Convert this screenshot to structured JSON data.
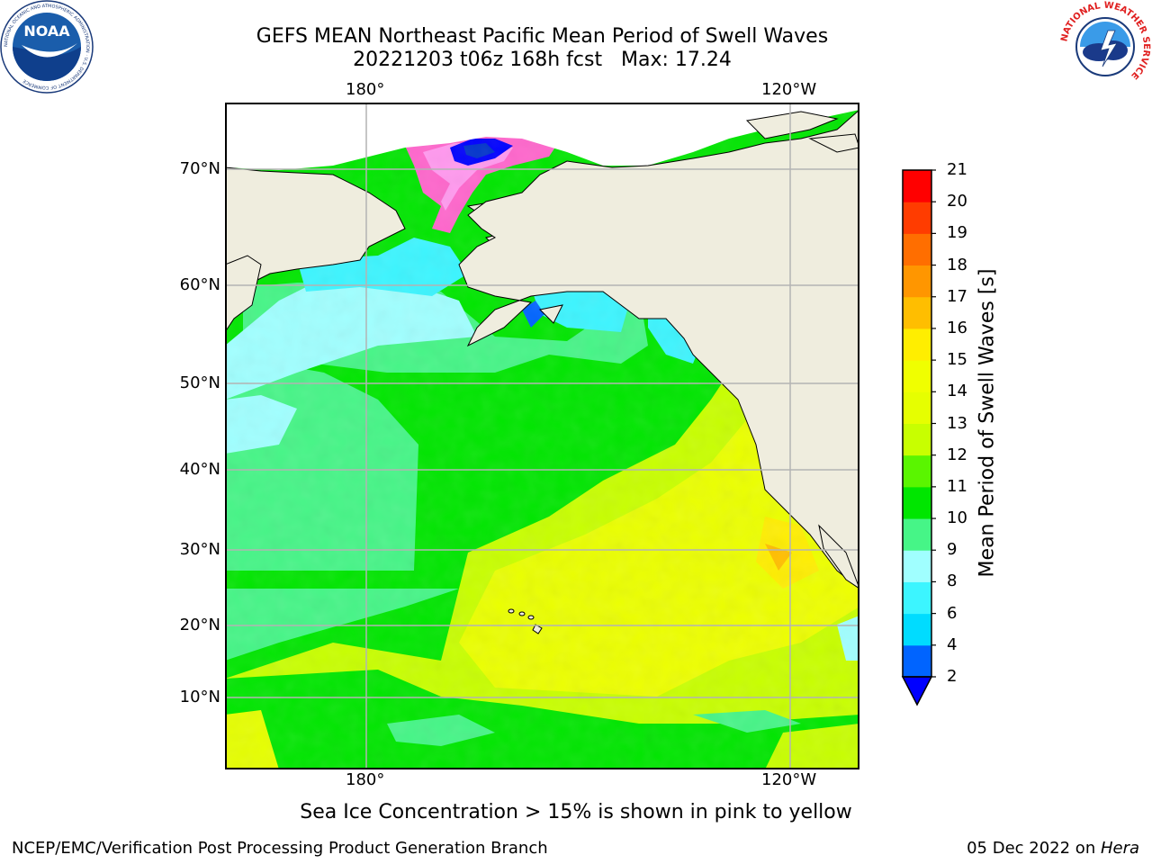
{
  "title": {
    "line1": "GEFS MEAN Northeast Pacific Mean Period of Swell Waves",
    "line2": "20221203 t06z 168h fcst   Max: 17.24"
  },
  "map": {
    "lon_labels_top": [
      "180°",
      "120°W"
    ],
    "lon_labels_bottom": [
      "180°",
      "120°W"
    ],
    "lat_labels": [
      "70°N",
      "60°N",
      "50°N",
      "40°N",
      "30°N",
      "20°N",
      "10°N"
    ],
    "land_color": "#efedde",
    "coastline_color": "#000000",
    "grid_color": "#b3b3b3",
    "grid": true
  },
  "colorbar": {
    "label": "Mean Period of Swell Waves [s]",
    "ticks": [
      "2",
      "4",
      "6",
      "8",
      "9",
      "10",
      "11",
      "12",
      "13",
      "14",
      "15",
      "16",
      "17",
      "18",
      "19",
      "20",
      "21"
    ],
    "colors": [
      "#0064ff",
      "#00dcff",
      "#3cf5ff",
      "#a0ffff",
      "#46f587",
      "#00e600",
      "#5af500",
      "#c8ff00",
      "#e6ff00",
      "#f0ff00",
      "#ffee00",
      "#ffbe00",
      "#ff9600",
      "#ff6e00",
      "#ff3c00",
      "#ff0000"
    ],
    "under_color": "#0000ff",
    "extend": "min"
  },
  "caption": "Sea Ice Concentration > 15% is shown in pink to yellow",
  "credit_left": "NCEP/EMC/Verification Post Processing Product Generation Branch",
  "credit_right_date": "05 Dec 2022 on ",
  "credit_right_machine": "Hera",
  "logos": {
    "noaa": "NOAA",
    "noaa_ring": "NATIONAL OCEANIC AND ATMOSPHERIC ADMINISTRATION · U.S. DEPARTMENT OF COMMERCE",
    "nws_ring": "NATIONAL WEATHER SERVICE"
  }
}
